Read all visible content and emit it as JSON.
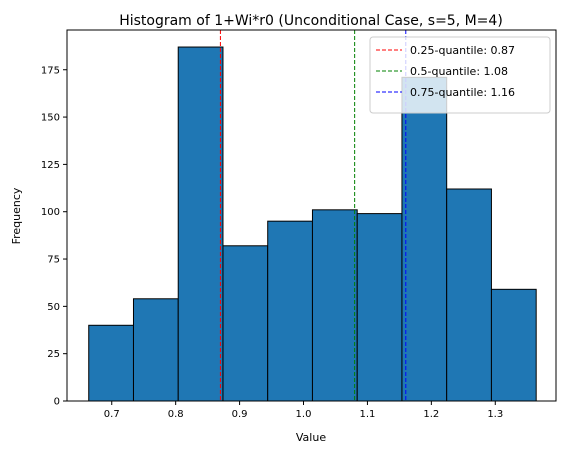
{
  "chart_data": {
    "type": "bar",
    "title": "Histogram of 1+Wi*r0 (Unconditional Case, s=5, M=4)",
    "xlabel": "Value",
    "ylabel": "Frequency",
    "xlim": [
      0.63,
      1.395
    ],
    "ylim": [
      0,
      196
    ],
    "xticks": [
      0.7,
      0.8,
      0.9,
      1.0,
      1.1,
      1.2,
      1.3
    ],
    "xtick_labels": [
      "0.7",
      "0.8",
      "0.9",
      "1.0",
      "1.1",
      "1.2",
      "1.3"
    ],
    "yticks": [
      0,
      25,
      50,
      75,
      100,
      125,
      150,
      175
    ],
    "ytick_labels": [
      "0",
      "25",
      "50",
      "75",
      "100",
      "125",
      "150",
      "175"
    ],
    "bin_edges": [
      0.664,
      0.734,
      0.804,
      0.874,
      0.944,
      1.014,
      1.084,
      1.154,
      1.224,
      1.294,
      1.364
    ],
    "values": [
      40,
      54,
      187,
      82,
      95,
      101,
      99,
      171,
      112,
      59
    ],
    "bar_color": "#1f77b4",
    "edge_color": "#000000",
    "vlines": [
      {
        "x": 0.87,
        "color": "#ff0000",
        "label": "0.25-quantile: 0.87"
      },
      {
        "x": 1.08,
        "color": "#008000",
        "label": "0.5-quantile: 1.08"
      },
      {
        "x": 1.16,
        "color": "#0000ff",
        "label": "0.75-quantile: 1.16"
      }
    ],
    "legend_position": "top-right",
    "grid": false
  }
}
